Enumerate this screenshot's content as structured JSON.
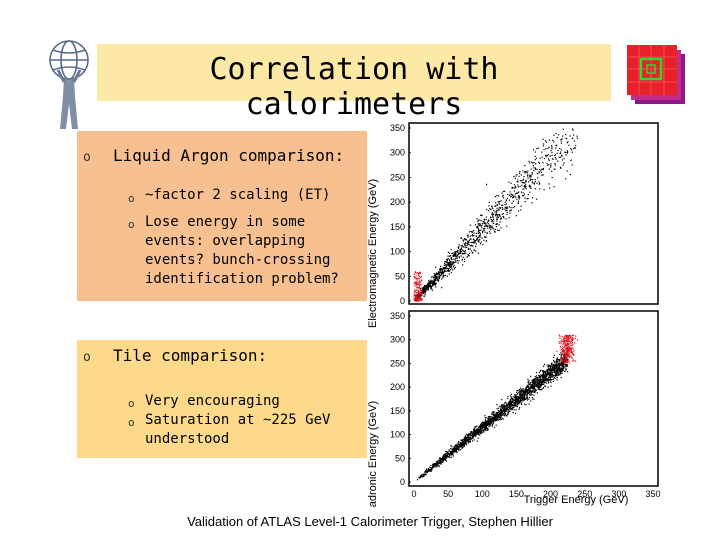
{
  "title": "Correlation with calorimeters",
  "left_panel": {
    "section1": {
      "heading": "Liquid Argon comparison:",
      "bullets": [
        "~factor 2 scaling (ET)",
        "Lose energy in some events: overlapping events? bunch-crossing identification problem?"
      ]
    },
    "section2": {
      "heading": "Tile comparison:",
      "bullets": [
        "Very encouraging",
        "Saturation at ~225 GeV understood"
      ]
    }
  },
  "footer": "Validation of ATLAS Level-1 Calorimeter Trigger,    Stephen Hillier",
  "colors": {
    "title_band": "#fde9a6",
    "panel_top": "#f7c090",
    "panel_bottom": "#fdd98c",
    "points_main": "#000000",
    "points_highlight": "#e8141e"
  },
  "chart_data": [
    {
      "type": "scatter",
      "ylabel": "Electromagnetic Energy (GeV)",
      "yticks": [
        0,
        50,
        100,
        150,
        200,
        250,
        300,
        350
      ],
      "ylim": [
        0,
        350
      ],
      "xlim": [
        0,
        350
      ],
      "trend": {
        "slope": 1.45,
        "x_range": [
          2,
          240
        ]
      },
      "highlight": {
        "x_range": [
          0,
          12
        ],
        "y_range": [
          0,
          60
        ]
      }
    },
    {
      "type": "scatter",
      "ylabel": "Hadronic Energy (GeV)",
      "xlabel": "Trigger Energy (GeV)",
      "xticks": [
        0,
        50,
        100,
        150,
        200,
        250,
        300,
        350
      ],
      "yticks": [
        0,
        50,
        100,
        150,
        200,
        250,
        300,
        350
      ],
      "xlim": [
        0,
        350
      ],
      "ylim": [
        0,
        350
      ],
      "trend": {
        "slope": 1.15,
        "x_range": [
          5,
          225
        ]
      },
      "saturation": {
        "x": 225,
        "y_range": [
          250,
          310
        ]
      }
    }
  ],
  "icons": [
    "atlas-logo-icon",
    "calorimeter-grid-icon"
  ]
}
